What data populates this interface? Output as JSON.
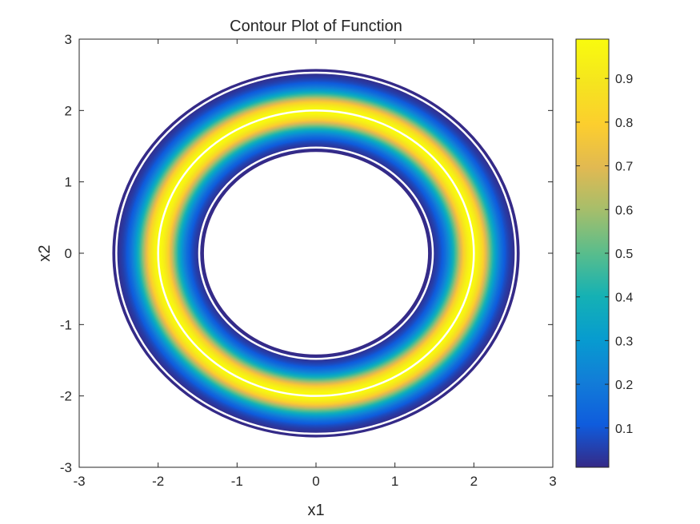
{
  "chart_data": {
    "type": "contour",
    "title": "Contour Plot of Function",
    "xlabel": "x1",
    "ylabel": "x2",
    "xlim": [
      -3,
      3
    ],
    "ylim": [
      -3,
      3
    ],
    "xticks": [
      "-3",
      "-2",
      "-1",
      "0",
      "1",
      "2",
      "3"
    ],
    "yticks": [
      "-3",
      "-2",
      "-1",
      "0",
      "1",
      "2",
      "3"
    ],
    "grid": false,
    "shape": "ring",
    "ring_center": [
      0,
      0
    ],
    "ring_peak_radius": 2.0,
    "ring_inner_radius": 1.43,
    "ring_outer_radius": 2.57,
    "highlight_contours_radius": [
      1.48,
      2.0,
      2.53
    ],
    "value_range": [
      0.01,
      0.99
    ],
    "colorbar": {
      "position": "right",
      "range": [
        0.01,
        0.99
      ],
      "ticks": [
        "0.1",
        "0.2",
        "0.3",
        "0.4",
        "0.5",
        "0.6",
        "0.7",
        "0.8",
        "0.9"
      ],
      "colormap": "parula"
    },
    "colors": {
      "low": "#352a87",
      "high": "#f9fb0e",
      "highlight_line": "#ffffff"
    }
  }
}
